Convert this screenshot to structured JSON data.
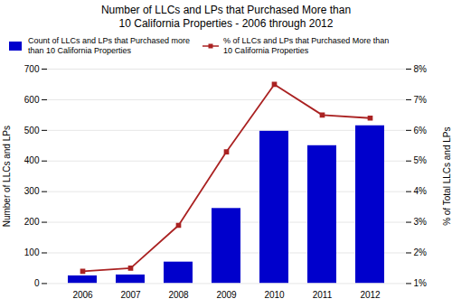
{
  "chart_data": {
    "type": "bar",
    "title": "Number of LLCs and LPs that Purchased More than\n10 California Properties - 2006 through 2012",
    "categories": [
      "2006",
      "2007",
      "2008",
      "2009",
      "2010",
      "2011",
      "2012"
    ],
    "series": [
      {
        "name": "Count of LLCs and LPs that Purchased more\nthan 10 California Properties",
        "type": "bar",
        "color": "#0000CC",
        "values": [
          25,
          28,
          70,
          245,
          497,
          450,
          515
        ]
      },
      {
        "name": "% of LLCs and LPs that Purchased More than\n10 California Properties",
        "type": "line",
        "axis": "y2",
        "color": "#AA2222",
        "marker": "square",
        "values": [
          1.4,
          1.5,
          2.9,
          5.3,
          7.5,
          6.5,
          6.4
        ]
      }
    ],
    "ylabel": "Number of LLCs and LPs",
    "y2label": "% of Total LLCs and LPs",
    "ylim": [
      0,
      700
    ],
    "yticks": [
      0,
      100,
      200,
      300,
      400,
      500,
      600,
      700
    ],
    "y2lim": [
      1,
      8
    ],
    "y2ticks": [
      {
        "value": 1,
        "label": "1%"
      },
      {
        "value": 2,
        "label": "2%"
      },
      {
        "value": 3,
        "label": "3%"
      },
      {
        "value": 4,
        "label": "4%"
      },
      {
        "value": 5,
        "label": "5%"
      },
      {
        "value": 6,
        "label": "6%"
      },
      {
        "value": 7,
        "label": "7%"
      },
      {
        "value": 8,
        "label": "8%"
      }
    ],
    "grid": true,
    "legend": "upper left"
  }
}
